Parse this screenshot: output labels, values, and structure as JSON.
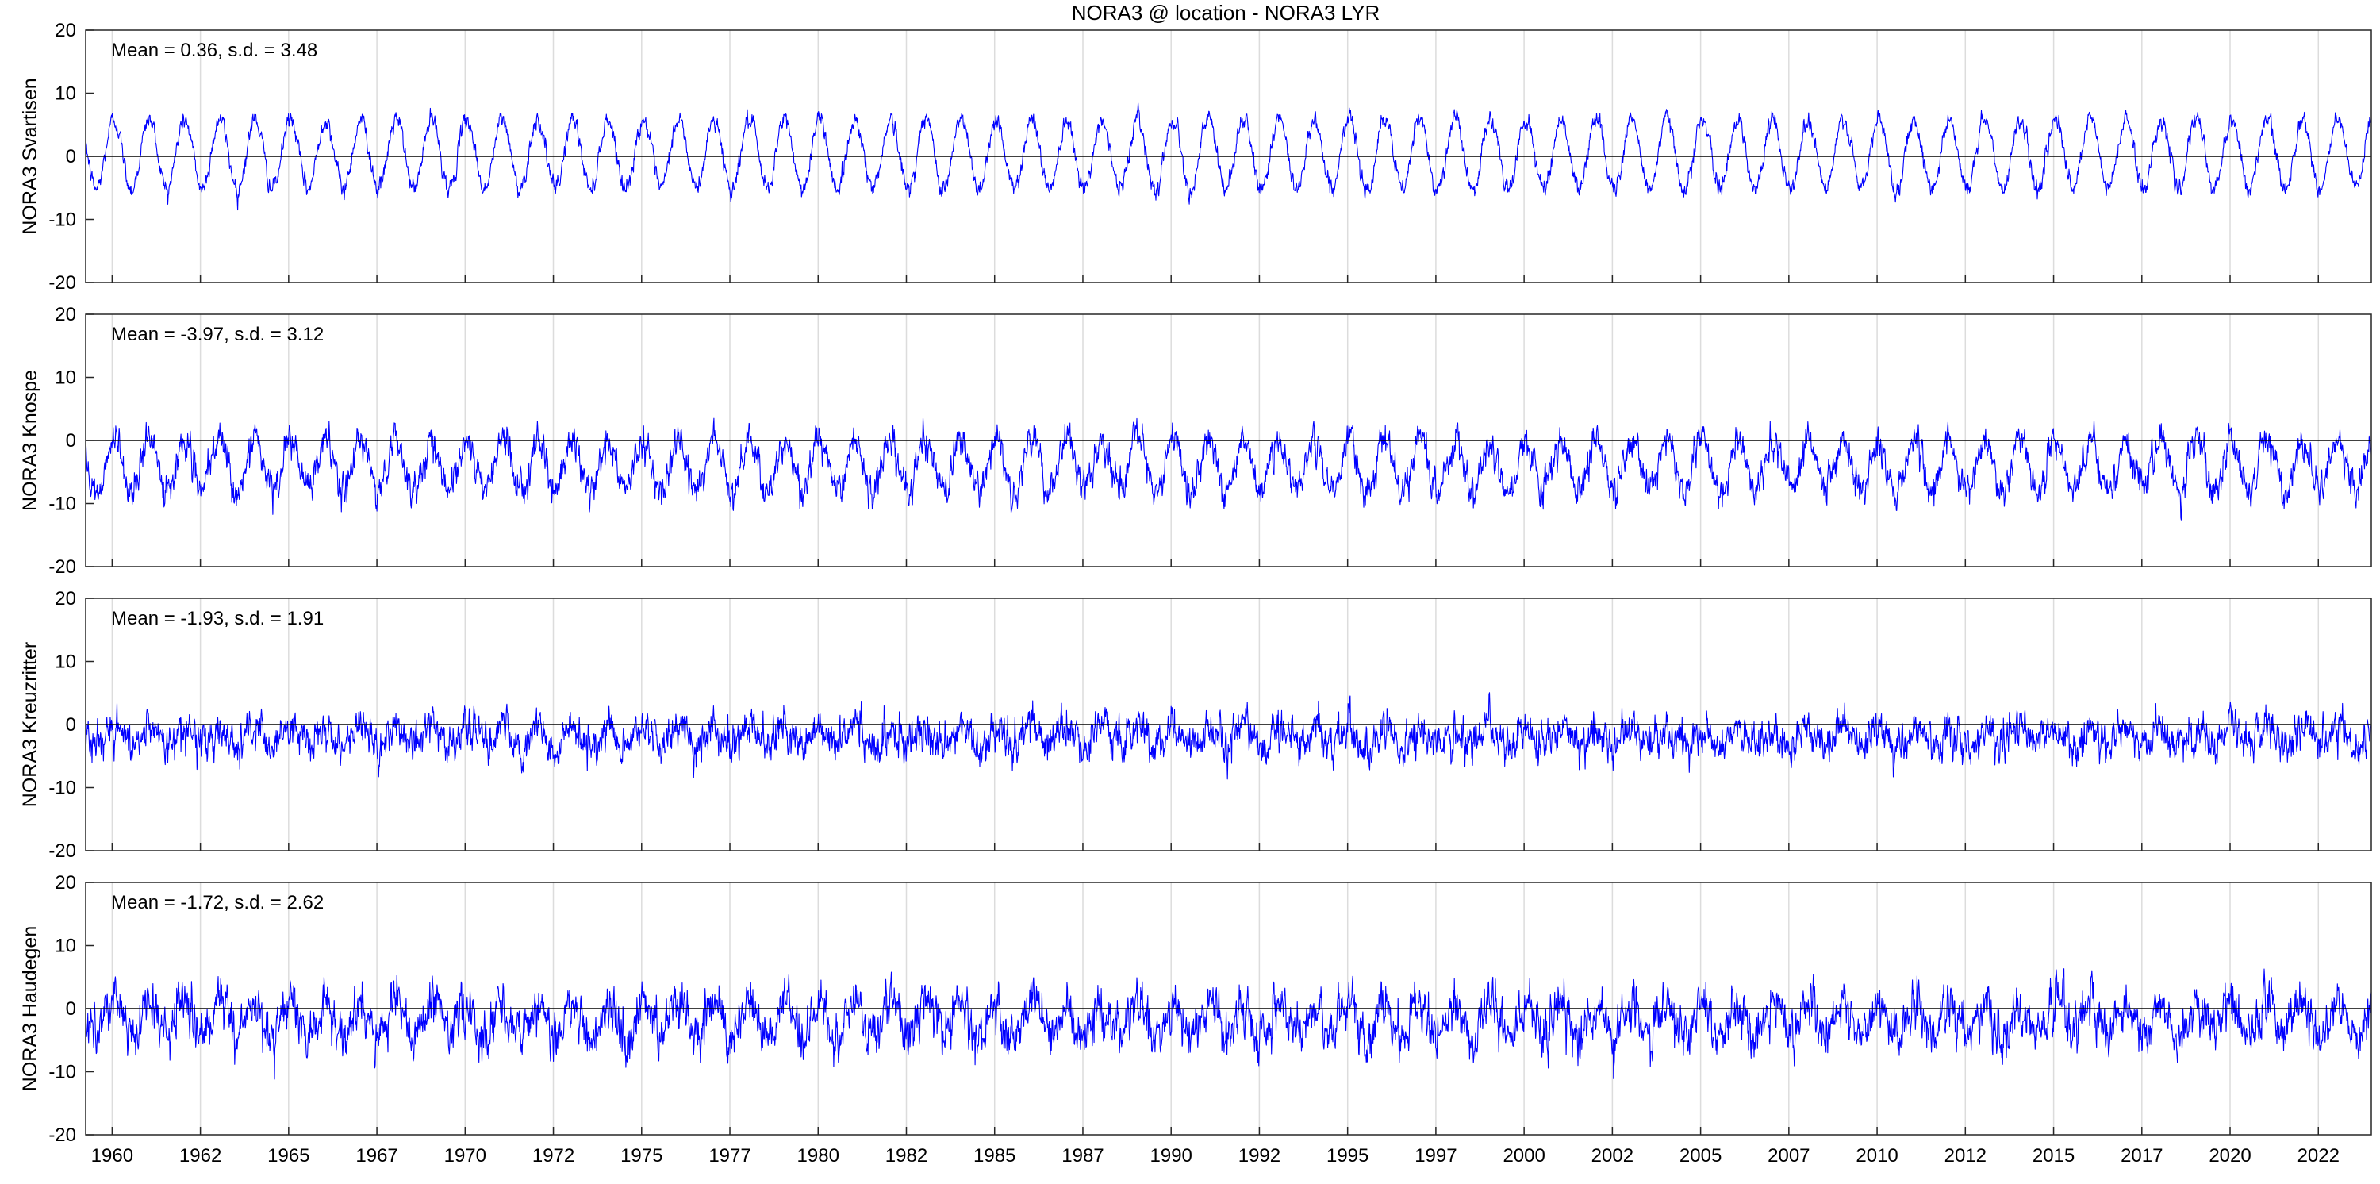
{
  "title": "NORA3 @ location - NORA3 LYR",
  "chart_data": [
    {
      "type": "line",
      "ylabel": "NORA3 Svartisen",
      "stats": "Mean = 0.36, s.d. = 3.48",
      "mean": 0.36,
      "sd": 3.48,
      "seasonal_amplitude": 5.5,
      "ylim": [
        -20,
        20
      ],
      "yticks": [
        -20,
        -10,
        0,
        10,
        20
      ],
      "xlim": [
        1959.25,
        2024.0
      ],
      "reference_line_y": 0,
      "series": [
        {
          "color": "#0000ff"
        }
      ]
    },
    {
      "type": "line",
      "ylabel": "NORA3 Knospe",
      "stats": "Mean = -3.97, s.d. = 3.12",
      "mean": -3.97,
      "sd": 3.12,
      "seasonal_amplitude": 4.0,
      "ylim": [
        -20,
        20
      ],
      "yticks": [
        -20,
        -10,
        0,
        10,
        20
      ],
      "xlim": [
        1959.25,
        2024.0
      ],
      "reference_line_y": 0,
      "series": [
        {
          "color": "#0000ff"
        }
      ]
    },
    {
      "type": "line",
      "ylabel": "NORA3 Kreuzritter",
      "stats": "Mean = -1.93, s.d. = 1.91",
      "mean": -1.93,
      "sd": 1.91,
      "seasonal_amplitude": 1.5,
      "ylim": [
        -20,
        20
      ],
      "yticks": [
        -20,
        -10,
        0,
        10,
        20
      ],
      "xlim": [
        1959.25,
        2024.0
      ],
      "reference_line_y": 0,
      "series": [
        {
          "color": "#0000ff"
        }
      ]
    },
    {
      "type": "line",
      "ylabel": "NORA3 Haudegen",
      "stats": "Mean = -1.72, s.d. = 2.62",
      "mean": -1.72,
      "sd": 2.62,
      "seasonal_amplitude": 2.5,
      "ylim": [
        -20,
        20
      ],
      "yticks": [
        -20,
        -10,
        0,
        10,
        20
      ],
      "xlim": [
        1959.25,
        2024.0
      ],
      "reference_line_y": 0,
      "series": [
        {
          "color": "#0000ff"
        }
      ]
    }
  ],
  "xtick_labels": [
    "1960",
    "1962",
    "1965",
    "1967",
    "1970",
    "1972",
    "1975",
    "1977",
    "1980",
    "1982",
    "1985",
    "1987",
    "1990",
    "1992",
    "1995",
    "1997",
    "2000",
    "2002",
    "2005",
    "2007",
    "2010",
    "2012",
    "2015",
    "2017",
    "2020",
    "2022"
  ],
  "xtick_values": [
    1960.0,
    1962.5,
    1965.0,
    1967.5,
    1970.0,
    1972.5,
    1975.0,
    1977.5,
    1980.0,
    1982.5,
    1985.0,
    1987.5,
    1990.0,
    1992.5,
    1995.0,
    1997.5,
    2000.0,
    2002.5,
    2005.0,
    2007.5,
    2010.0,
    2012.5,
    2015.0,
    2017.5,
    2020.0,
    2022.5
  ],
  "colors": {
    "series": "#0000ff",
    "axes": "#262626",
    "grid": "#dcdcdc",
    "zero_line": "#000000"
  }
}
